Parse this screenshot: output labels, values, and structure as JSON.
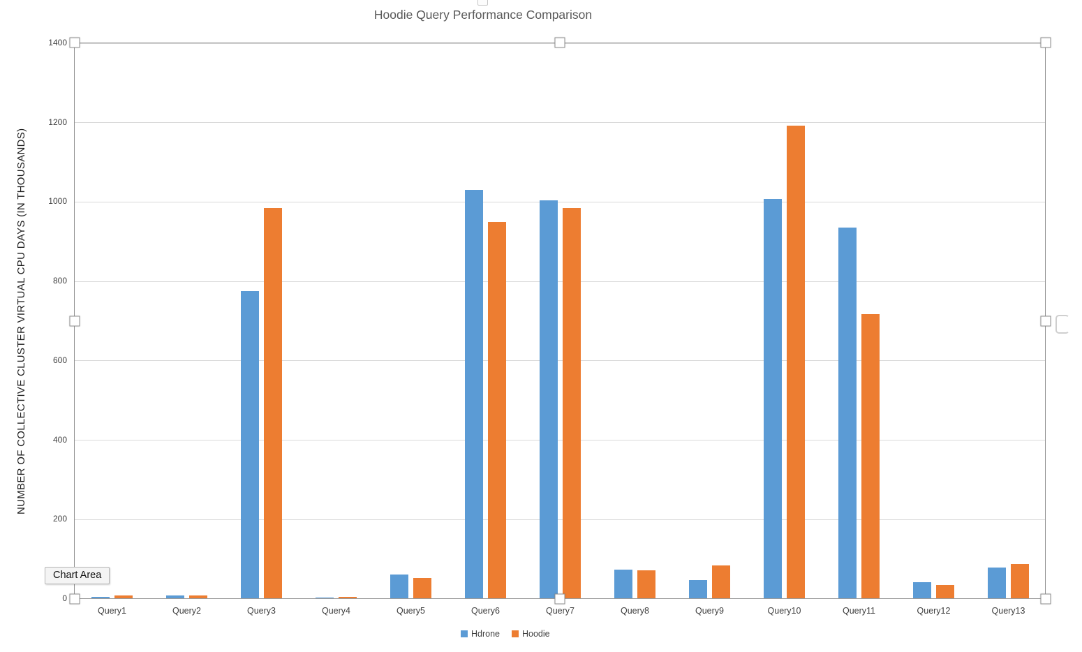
{
  "chart_data": {
    "type": "bar",
    "title": "Hoodie Query Performance Comparison",
    "xlabel": "",
    "ylabel": "NUMBER OF COLLECTIVE CLUSTER VIRTUAL CPU DAYS (IN THOUSANDS)",
    "categories": [
      "Query1",
      "Query2",
      "Query3",
      "Query4",
      "Query5",
      "Query6",
      "Query7",
      "Query8",
      "Query9",
      "Query10",
      "Query11",
      "Query12",
      "Query13"
    ],
    "series": [
      {
        "name": "Hdrone",
        "color": "#5B9BD5",
        "values": [
          5,
          9,
          775,
          4,
          62,
          1030,
          1005,
          73,
          48,
          1008,
          935,
          42,
          80
        ]
      },
      {
        "name": "Hoodie",
        "color": "#ED7D31",
        "values": [
          9,
          9,
          985,
          5,
          52,
          950,
          985,
          72,
          85,
          1192,
          718,
          35,
          88
        ]
      }
    ],
    "ylim": [
      0,
      1400
    ],
    "yticks": [
      0,
      200,
      400,
      600,
      800,
      1000,
      1200,
      1400
    ],
    "grid": true,
    "legend_position": "bottom"
  },
  "tooltip": {
    "label": "Chart Area"
  },
  "colors": {
    "hdrone_blue": "#5B9BD5",
    "hoodie_orange": "#ED7D31",
    "gridline": "#D9D9D9",
    "axis_line": "#9B9B9B",
    "selection_frame": "#8E8E8E",
    "title_text": "#595959",
    "tick_text": "#404040"
  }
}
